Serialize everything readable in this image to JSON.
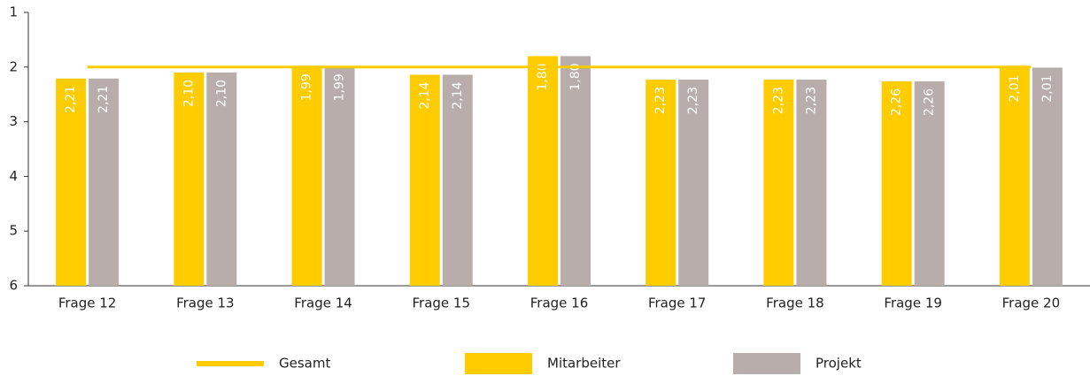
{
  "chart_data": {
    "type": "bar",
    "categories": [
      "Frage 12",
      "Frage 13",
      "Frage 14",
      "Frage 15",
      "Frage 16",
      "Frage 17",
      "Frage 18",
      "Frage 19",
      "Frage 20"
    ],
    "series": [
      {
        "name": "Gesamt",
        "type": "line",
        "color": "#ffcc00",
        "values": [
          2,
          2,
          2,
          2,
          2,
          2,
          2,
          2,
          2
        ]
      },
      {
        "name": "Mitarbeiter",
        "color": "#ffcc00",
        "values": [
          2.21,
          2.1,
          1.99,
          2.14,
          1.8,
          2.23,
          2.23,
          2.26,
          2.01
        ],
        "value_labels": [
          "2,21",
          "2,10",
          "1,99",
          "2,14",
          "1,80",
          "2,23",
          "2,23",
          "2,26",
          "2,01"
        ]
      },
      {
        "name": "Projekt",
        "color": "#b8adab",
        "values": [
          2.21,
          2.1,
          1.99,
          2.14,
          1.8,
          2.23,
          2.23,
          2.26,
          2.01
        ],
        "value_labels": [
          "2,21",
          "2,10",
          "1,99",
          "2,14",
          "1,80",
          "2,23",
          "2,23",
          "2,26",
          "2,01"
        ]
      }
    ],
    "ylim": [
      1,
      6
    ],
    "yticks": [
      1,
      2,
      3,
      4,
      5,
      6
    ],
    "y_inverted": true,
    "legend": "bottom"
  }
}
